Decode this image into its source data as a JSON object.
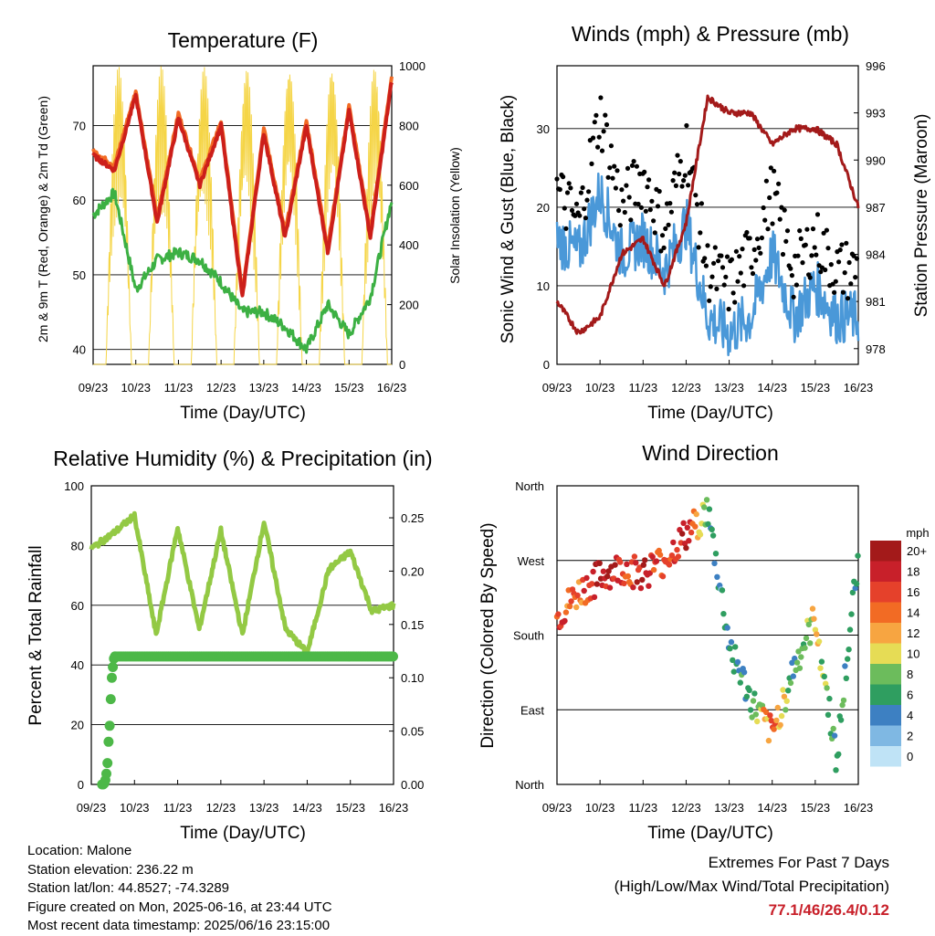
{
  "x_ticks": [
    "09/23",
    "10/23",
    "11/23",
    "12/23",
    "13/23",
    "14/23",
    "15/23",
    "16/23"
  ],
  "colors": {
    "temp2m": "#cc1f1a",
    "temp9m": "#f26b24",
    "dewpoint": "#3cb043",
    "solar": "#f5d547",
    "sonic": "#4a98d8",
    "gust": "#000000",
    "pressure": "#a31a1a",
    "rh": "#93c944",
    "precip": "#4db848"
  },
  "charts": {
    "temperature": {
      "title": "Temperature (F)",
      "xlabel": "Time (Day/UTC)",
      "ylabel_left": "2m & 9m T (Red, Orange) & 2m Td (Green)",
      "ylabel_right": "Solar Insolation (Yellow)",
      "y_left_ticks": [
        "40",
        "50",
        "60",
        "70"
      ],
      "y_right_ticks": [
        "0",
        "200",
        "400",
        "600",
        "800",
        "1000"
      ]
    },
    "winds": {
      "title": "Winds (mph) & Pressure (mb)",
      "xlabel": "Time (Day/UTC)",
      "ylabel_left": "Sonic Wind & Gust (Blue, Black)",
      "ylabel_right": "Station Pressure (Maroon)",
      "y_left_ticks": [
        "0",
        "10",
        "20",
        "30"
      ],
      "y_right_ticks": [
        "978",
        "981",
        "984",
        "987",
        "990",
        "993",
        "996"
      ]
    },
    "humidity": {
      "title": "Relative Humidity (%) & Precipitation (in)",
      "xlabel": "Time (Day/UTC)",
      "ylabel_left": "Percent & Total Rainfall",
      "y_left_ticks": [
        "0",
        "20",
        "40",
        "60",
        "80",
        "100"
      ],
      "y_right_ticks": [
        "0.00",
        "0.05",
        "0.10",
        "0.15",
        "0.20",
        "0.25"
      ]
    },
    "direction": {
      "title": "Wind Direction",
      "xlabel": "Time (Day/UTC)",
      "ylabel_left": "Direction (Colored By Speed)",
      "y_ticks": [
        "North",
        "East",
        "South",
        "West",
        "North"
      ],
      "legend_title": "mph",
      "legend_labels": [
        "20+",
        "18",
        "16",
        "14",
        "12",
        "10",
        "8",
        "6",
        "4",
        "2",
        "0"
      ],
      "legend_colors": [
        "#a31a1a",
        "#c8202a",
        "#e5412b",
        "#f26b24",
        "#f7a541",
        "#e6dc55",
        "#6cbc5c",
        "#2f9e60",
        "#3d80c2",
        "#7fb8e3",
        "#bfe3f6"
      ]
    }
  },
  "chart_data": [
    {
      "type": "line",
      "title": "Temperature (F)",
      "x": [
        0,
        0.5,
        1,
        1.5,
        2,
        2.5,
        3,
        3.5,
        4,
        4.5,
        5,
        5.5,
        6,
        6.5,
        7
      ],
      "series": [
        {
          "name": "2m T",
          "values": [
            66,
            64,
            74,
            57,
            71,
            62,
            70,
            47,
            69,
            55,
            70,
            53,
            72,
            55,
            76
          ]
        },
        {
          "name": "2m Td",
          "values": [
            58,
            61,
            48,
            52,
            53,
            52,
            49,
            45,
            45,
            43,
            40,
            46,
            42,
            47,
            60
          ]
        },
        {
          "name": "Solar Insolation",
          "values": [
            0,
            0,
            1000,
            0,
            1000,
            0,
            1000,
            0,
            1000,
            0,
            950,
            0,
            1000,
            0,
            950
          ]
        }
      ],
      "ylim_left": [
        38,
        78
      ],
      "ylim_right": [
        0,
        1000
      ]
    },
    {
      "type": "scatter",
      "title": "Winds (mph) & Pressure (mb)",
      "x": [
        0,
        0.5,
        1,
        1.5,
        2,
        2.5,
        3,
        3.5,
        4,
        4.5,
        5,
        5.5,
        6,
        6.5,
        7
      ],
      "series": [
        {
          "name": "Sonic Wind",
          "values": [
            16,
            14,
            22,
            14,
            16,
            12,
            18,
            6,
            4,
            6,
            14,
            6,
            10,
            6,
            6
          ]
        },
        {
          "name": "Gust",
          "values": [
            22,
            18,
            32,
            20,
            24,
            17,
            28,
            12,
            10,
            14,
            22,
            12,
            16,
            12,
            12
          ]
        },
        {
          "name": "Station Pressure",
          "values": [
            981,
            979,
            980,
            984,
            985,
            982,
            986,
            994,
            993,
            993,
            991,
            992,
            992,
            991,
            987
          ]
        }
      ],
      "ylim_left": [
        0,
        38
      ],
      "ylim_right": [
        977,
        996
      ]
    },
    {
      "type": "line",
      "title": "Relative Humidity (%) & Precipitation (in)",
      "x": [
        0,
        0.5,
        1,
        1.5,
        2,
        2.5,
        3,
        3.5,
        4,
        4.5,
        5,
        5.5,
        6,
        6.5,
        7
      ],
      "series": [
        {
          "name": "Relative Humidity",
          "values": [
            79,
            84,
            90,
            50,
            86,
            52,
            85,
            50,
            88,
            52,
            44,
            72,
            78,
            58,
            60
          ]
        },
        {
          "name": "Total Precipitation",
          "values": [
            0,
            0,
            0.12,
            0.12,
            0.12,
            0.12,
            0.12,
            0.12,
            0.12,
            0.12,
            0.12,
            0.12,
            0.12,
            0.12,
            0.12
          ]
        }
      ],
      "ylim_left": [
        0,
        100
      ],
      "ylim_right": [
        0,
        0.28
      ]
    },
    {
      "type": "scatter",
      "title": "Wind Direction",
      "x": [
        0,
        0.5,
        1,
        1.5,
        2,
        2.5,
        3,
        3.5,
        4,
        4.5,
        5,
        5.5,
        6,
        6.5,
        7
      ],
      "series": [
        {
          "name": "Direction",
          "values": [
            200,
            230,
            250,
            260,
            255,
            270,
            300,
            330,
            170,
            100,
            60,
            140,
            200,
            30,
            280
          ]
        },
        {
          "name": "Speed",
          "values": [
            16,
            14,
            20,
            16,
            18,
            14,
            20,
            6,
            4,
            6,
            14,
            6,
            10,
            6,
            6
          ]
        }
      ],
      "ylim": [
        0,
        360
      ]
    }
  ],
  "info": {
    "location": "Location: Malone",
    "elevation": "Station elevation: 236.22 m",
    "latlon": "Station lat/lon: 44.8527; -74.3289",
    "created": "Figure created on Mon, 2025-06-16, at 23:44 UTC",
    "recent": "Most recent data timestamp: 2025/06/16 23:15:00"
  },
  "extremes": {
    "line1": "Extremes For Past 7 Days",
    "line2": "(High/Low/Max Wind/Total Precipitation)",
    "values": "77.1/46/26.4/0.12"
  }
}
